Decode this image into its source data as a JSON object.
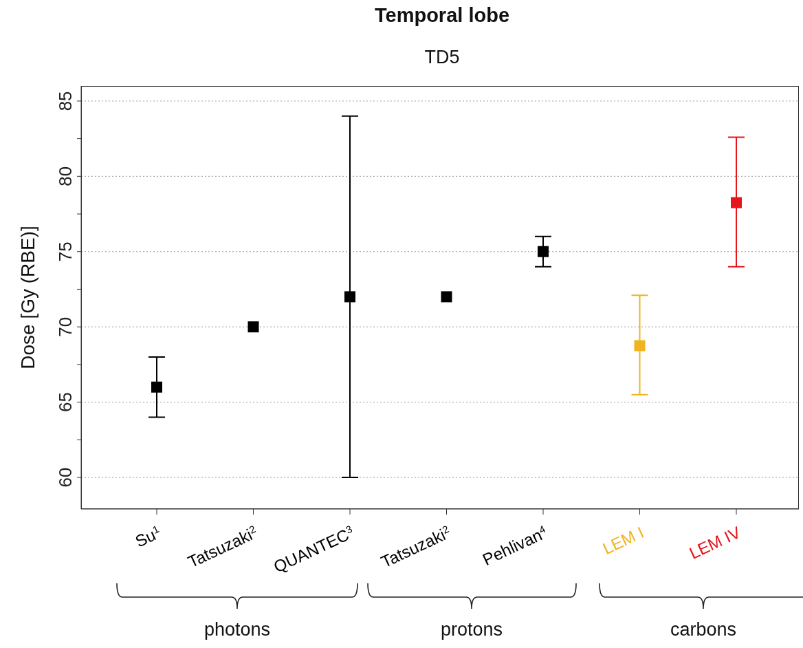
{
  "chart_data": {
    "type": "scatter",
    "title": "Temporal lobe",
    "subtitle": "TD5",
    "ylabel": "Dose [Gy (RBE)]",
    "categories": [
      "Su$^{1}$",
      "Tatsuzaki$^{2}$",
      "QUANTEC$^{3}$",
      "Tatsuzaki$^{2}$",
      "Pehlivan$^{4}$",
      "LEM I",
      "LEM IV"
    ],
    "values": [
      66,
      70,
      72,
      72,
      75,
      68.75,
      78.25
    ],
    "colors": [
      "#000000",
      "#000000",
      "#000000",
      "#000000",
      "#000000",
      "#f0b41e",
      "#e8141b"
    ],
    "errors": [
      [
        64,
        68
      ],
      null,
      [
        60,
        84
      ],
      null,
      [
        74,
        76
      ],
      [
        65.5,
        72.1
      ],
      [
        74,
        82.6
      ]
    ],
    "ylim": [
      57.9,
      86
    ],
    "yticks": [
      60,
      {
        "value": 62.5,
        "label": null
      },
      65,
      {
        "value": 67.5,
        "label": null
      },
      70,
      {
        "value": 72.5,
        "label": null
      },
      75,
      {
        "value": 77.5,
        "label": null
      },
      80,
      {
        "value": 82.5,
        "label": null
      },
      85
    ],
    "grid": "y",
    "marker": "square",
    "annotations": [
      "photons",
      "protons",
      "carbons"
    ]
  }
}
